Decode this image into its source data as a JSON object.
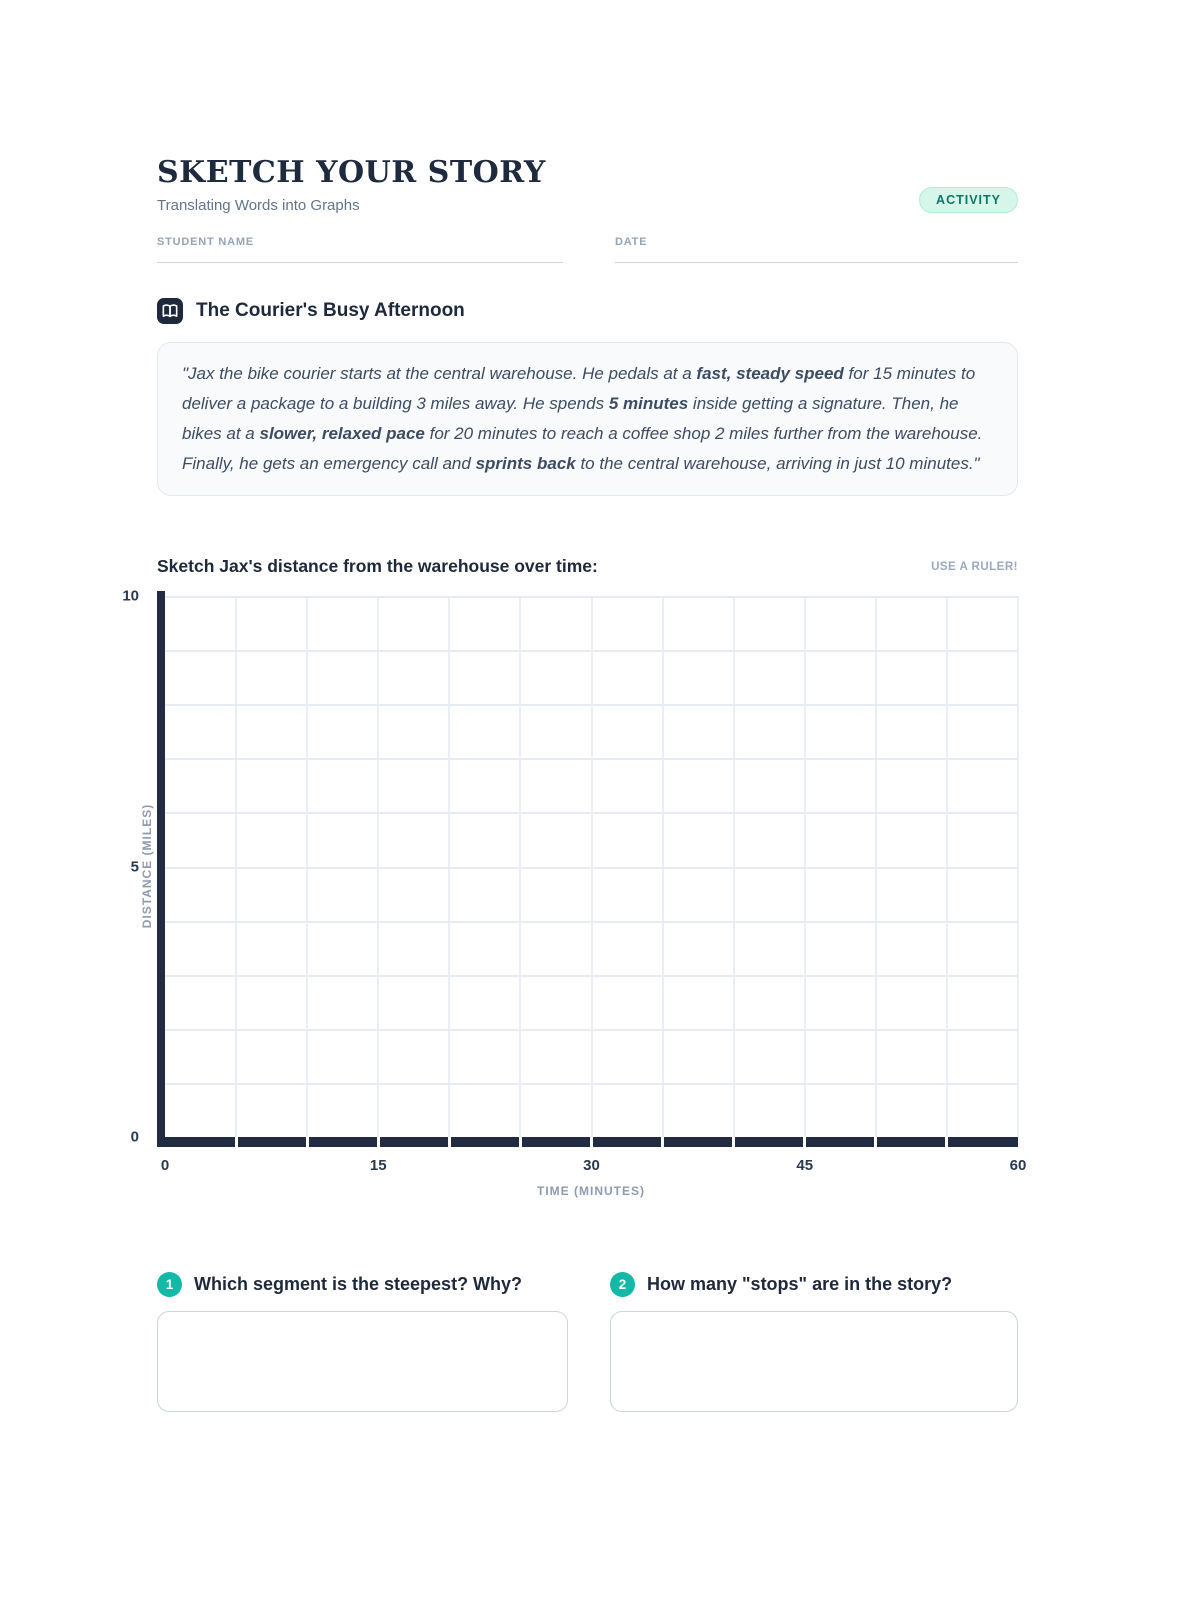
{
  "header": {
    "title": "SKETCH YOUR STORY",
    "subtitle": "Translating Words into Graphs",
    "badge": "ACTIVITY",
    "fields": [
      {
        "label": "STUDENT NAME",
        "value": ""
      },
      {
        "label": "DATE",
        "value": ""
      }
    ]
  },
  "story": {
    "icon": "open-book-icon",
    "heading": "The Courier's Busy Afternoon",
    "segments": [
      {
        "text": "\"Jax the bike courier starts at the central warehouse. He pedals at a "
      },
      {
        "text": "fast, steady speed",
        "bold": true
      },
      {
        "text": " for 15 minutes to deliver a package to a building 3 miles away. He spends "
      },
      {
        "text": "5 minutes",
        "bold": true
      },
      {
        "text": " inside getting a signature. Then, he bikes at a "
      },
      {
        "text": "slower, relaxed pace",
        "bold": true
      },
      {
        "text": " for 20 minutes to reach a coffee shop 2 miles further from the warehouse. Finally, he gets an emergency call and "
      },
      {
        "text": "sprints back",
        "bold": true
      },
      {
        "text": " to the central warehouse, arriving in just 10 minutes.\""
      }
    ]
  },
  "graph": {
    "prompt": "Sketch Jax's distance from the warehouse over time:",
    "hint": "USE A RULER!"
  },
  "chart_data": {
    "type": "line",
    "title": "Sketch Jax's distance from the warehouse over time:",
    "xlabel": "TIME (MINUTES)",
    "ylabel": "DISTANCE (MILES)",
    "xlim": [
      0,
      60
    ],
    "ylim": [
      0,
      10
    ],
    "x_ticks": [
      0,
      15,
      30,
      45,
      60
    ],
    "y_ticks": [
      0,
      5,
      10
    ],
    "grid": true,
    "x_grid_step": 5,
    "y_grid_step": 1,
    "series": []
  },
  "questions": [
    {
      "number": "1",
      "text": "Which segment is the steepest? Why?",
      "answer": ""
    },
    {
      "number": "2",
      "text": "How many \"stops\" are in the story?",
      "answer": ""
    }
  ],
  "colors": {
    "ink": "#1e293b",
    "axis": "#212c42",
    "accent_teal": "#14b8a6",
    "badge_bg": "#d7f6ea",
    "badge_text": "#0e7568",
    "muted": "#94a3b8",
    "grid_line": "#e6ebf4",
    "story_box_bg": "#f8fafc"
  }
}
